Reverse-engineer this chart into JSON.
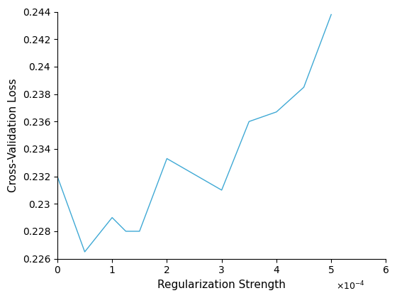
{
  "x": [
    0,
    5e-05,
    0.0001,
    0.000125,
    0.00015,
    0.0002,
    0.0003,
    0.00035,
    0.0004,
    0.00045,
    0.0005
  ],
  "y": [
    0.232,
    0.2265,
    0.229,
    0.228,
    0.228,
    0.2333,
    0.231,
    0.236,
    0.2367,
    0.2385,
    0.2438
  ],
  "line_color": "#3fa9d5",
  "xlabel": "Regularization Strength",
  "ylabel": "Cross-Validation Loss",
  "xlim": [
    0,
    0.0006
  ],
  "ylim": [
    0.226,
    0.244
  ],
  "xticks": [
    0,
    0.0001,
    0.0002,
    0.0003,
    0.0004,
    0.0005,
    0.0006
  ],
  "ytick_values": [
    0.226,
    0.228,
    0.23,
    0.232,
    0.234,
    0.236,
    0.238,
    0.24,
    0.242,
    0.244
  ],
  "ytick_labels": [
    "0.226",
    "0.228",
    "0.23",
    "0.232",
    "0.234",
    "0.236",
    "0.238",
    "0.24",
    "0.242",
    "0.244"
  ],
  "line_width": 1.0,
  "bg_color": "#ffffff",
  "tick_fontsize": 10,
  "label_fontsize": 11
}
